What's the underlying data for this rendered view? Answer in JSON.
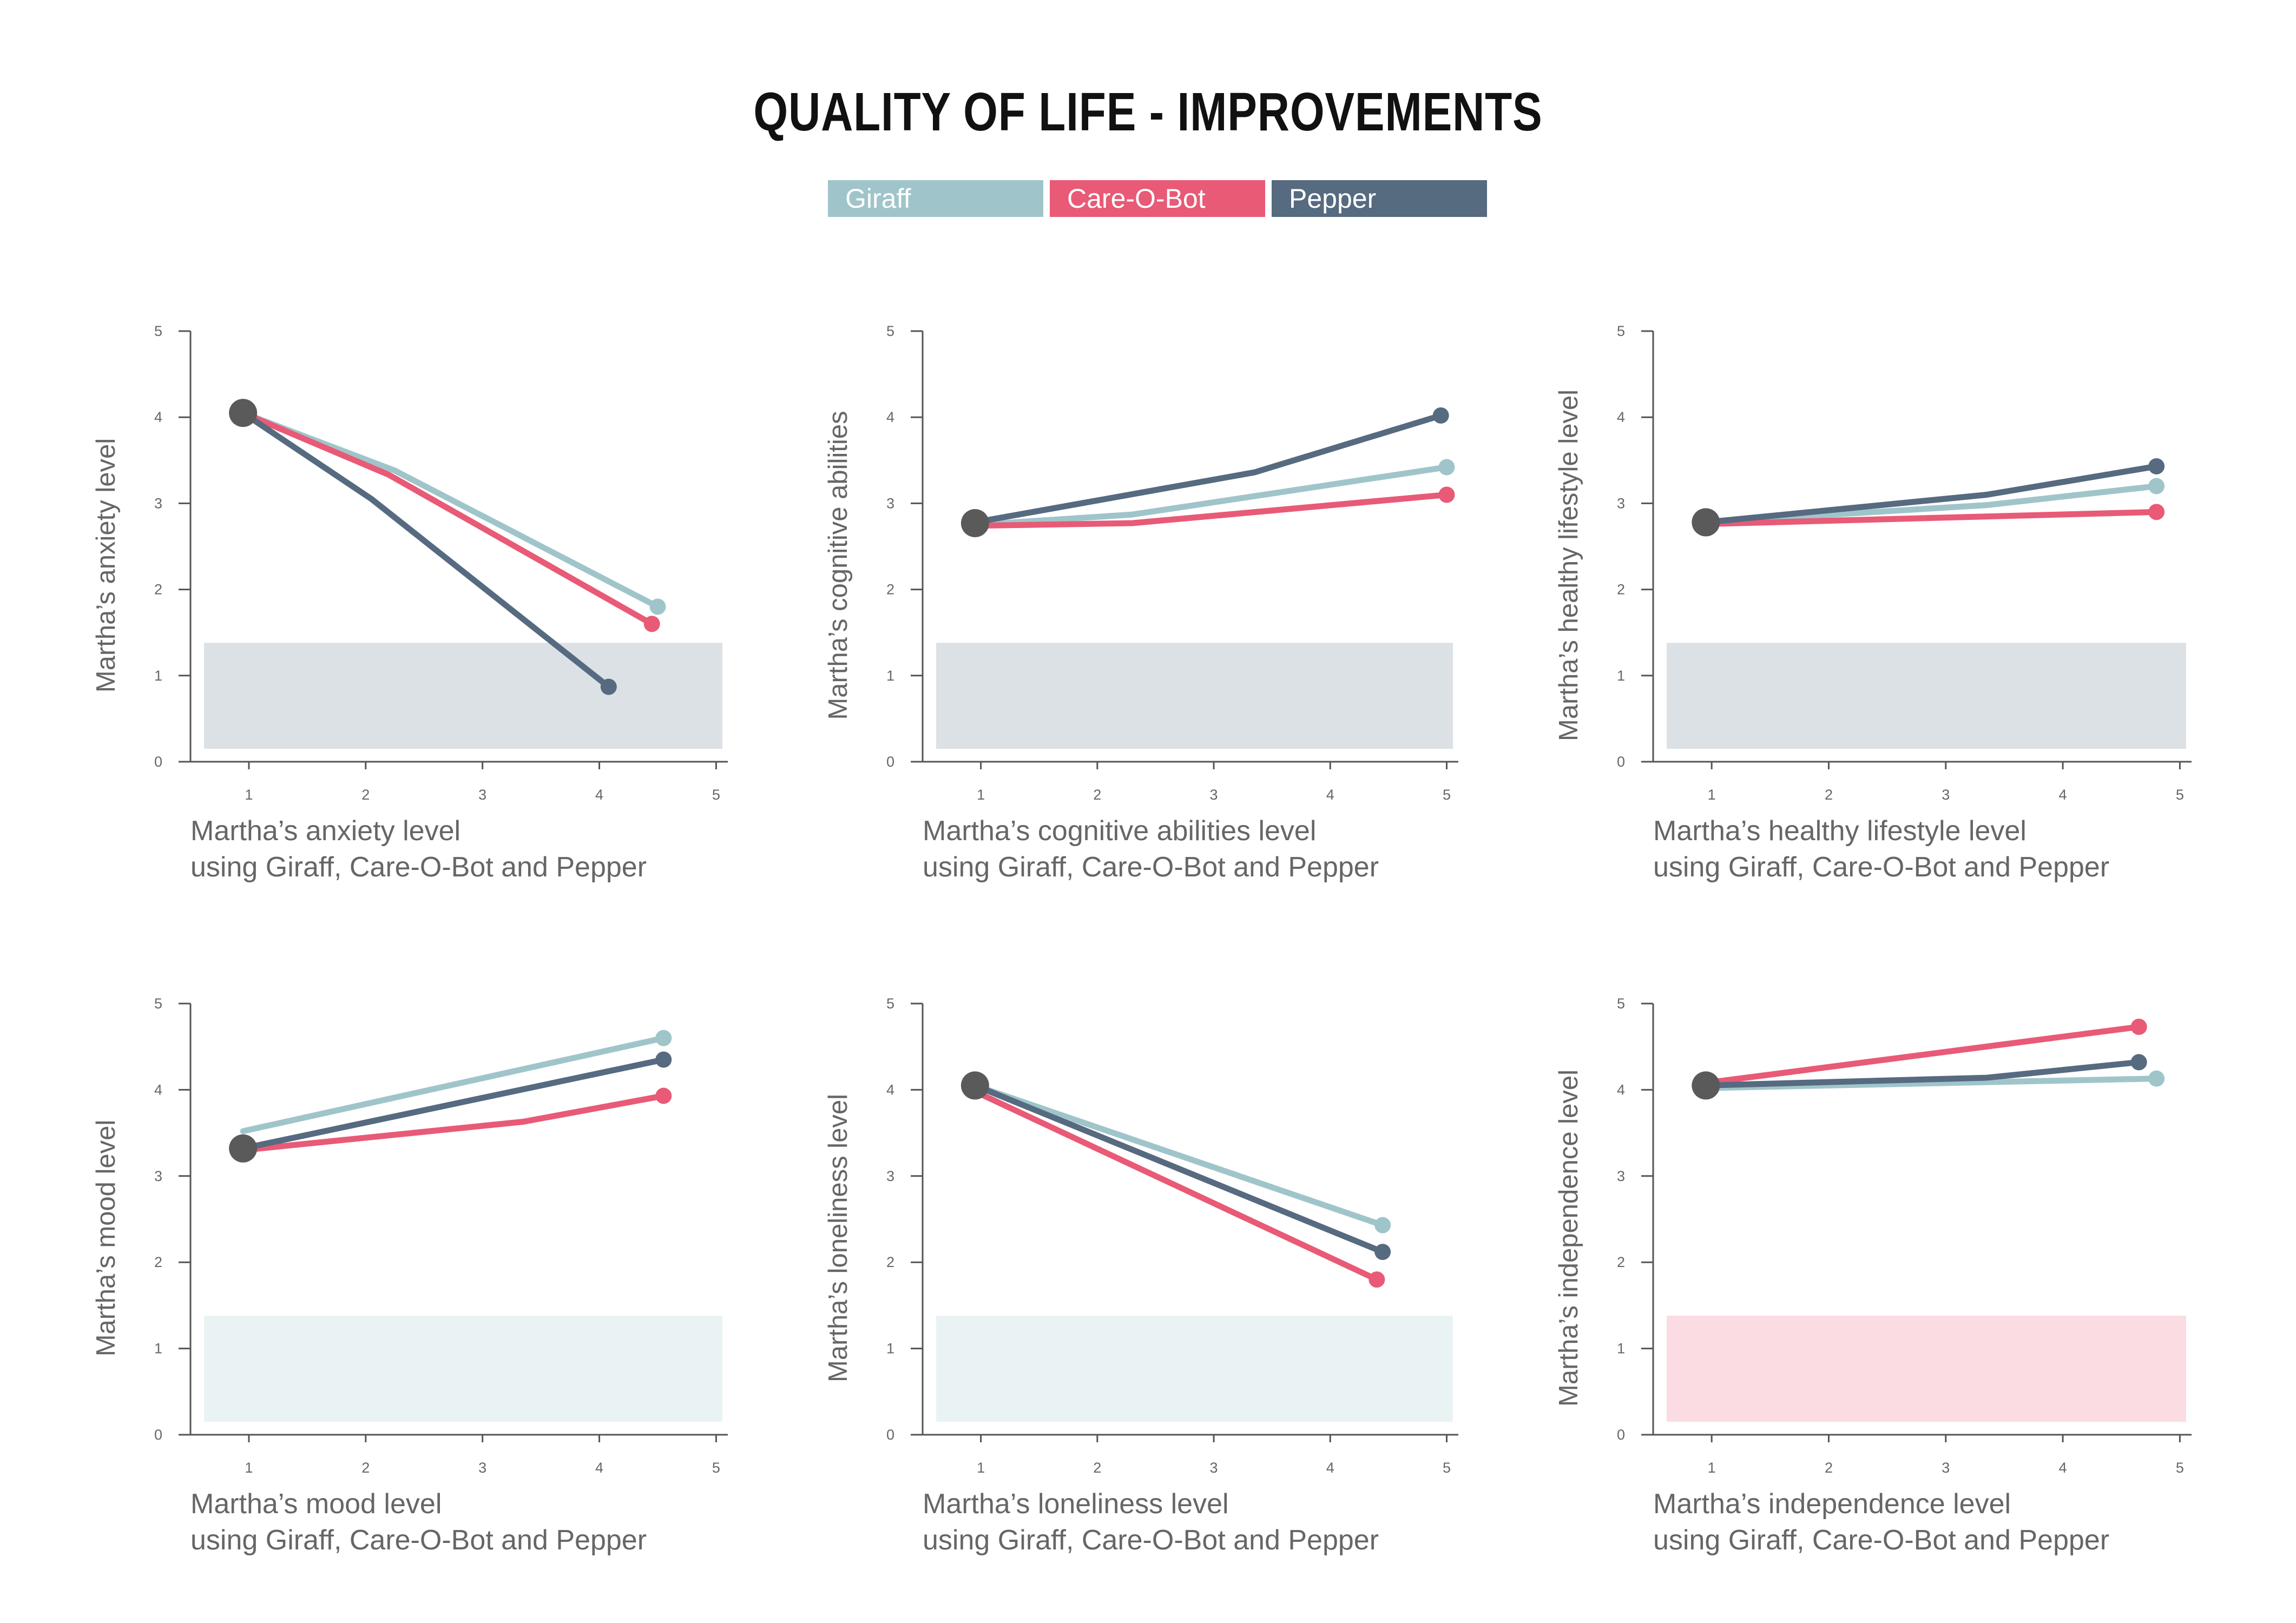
{
  "title": "QUALITY OF LIFE - IMPROVEMENTS",
  "colors": {
    "giraff": "#9fc5ca",
    "careobot": "#e85a76",
    "pepper": "#566a80",
    "start_dot": "#5a5a5a",
    "axis": "#555555",
    "text": "#666666",
    "band_gray": "#dce1e5",
    "band_teal": "#eaf3f4",
    "band_pink": "#fbdce3"
  },
  "legend": [
    {
      "label": "Giraff",
      "color": "#9fc5ca"
    },
    {
      "label": "Care-O-Bot",
      "color": "#e85a76"
    },
    {
      "label": "Pepper",
      "color": "#566a80"
    }
  ],
  "chart_data": [
    {
      "type": "line",
      "ylabel": "Martha’s anxiety level",
      "xlabel": [
        "Martha’s anxiety level",
        "using Giraff, Care-O-Bot and Pepper"
      ],
      "xticks": [
        "1",
        "2",
        "3",
        "4",
        "5"
      ],
      "yticks": [
        "0",
        "1",
        "2",
        "3",
        "4",
        "5"
      ],
      "xlim": [
        0.5,
        5.1
      ],
      "ylim": [
        0,
        5
      ],
      "band": {
        "color": "#dce1e5",
        "y_range": [
          0.15,
          1.38
        ]
      },
      "start": {
        "x": 0.95,
        "y": 4.05
      },
      "series": [
        {
          "color": "#9fc5ca",
          "x": [
            0.95,
            2.25,
            4.5
          ],
          "y": [
            4.05,
            3.38,
            1.8
          ]
        },
        {
          "color": "#e85a76",
          "x": [
            0.95,
            2.2,
            4.45
          ],
          "y": [
            4.05,
            3.33,
            1.6
          ]
        },
        {
          "color": "#566a80",
          "x": [
            0.95,
            2.05,
            4.08
          ],
          "y": [
            4.05,
            3.05,
            0.87
          ]
        }
      ]
    },
    {
      "type": "line",
      "ylabel": "Martha’s cognitive abilities",
      "xlabel": [
        "Martha’s cognitive abilities level",
        "using Giraff, Care-O-Bot and Pepper"
      ],
      "xticks": [
        "1",
        "2",
        "3",
        "4",
        "5"
      ],
      "yticks": [
        "0",
        "1",
        "2",
        "3",
        "4",
        "5"
      ],
      "xlim": [
        0.5,
        5.1
      ],
      "ylim": [
        0,
        5
      ],
      "band": {
        "color": "#dce1e5",
        "y_range": [
          0.15,
          1.38
        ]
      },
      "start": {
        "x": 0.95,
        "y": 2.77
      },
      "series": [
        {
          "color": "#9fc5ca",
          "x": [
            0.95,
            2.3,
            5.0
          ],
          "y": [
            2.75,
            2.87,
            3.42
          ]
        },
        {
          "color": "#e85a76",
          "x": [
            0.95,
            2.3,
            5.0
          ],
          "y": [
            2.74,
            2.77,
            3.1
          ]
        },
        {
          "color": "#566a80",
          "x": [
            0.95,
            3.35,
            4.95
          ],
          "y": [
            2.78,
            3.36,
            4.02
          ]
        }
      ]
    },
    {
      "type": "line",
      "ylabel": "Martha’s healthy lifestyle level",
      "xlabel": [
        "Martha’s healthy lifestyle level",
        "using Giraff, Care-O-Bot and Pepper"
      ],
      "xticks": [
        "1",
        "2",
        "3",
        "4",
        "5"
      ],
      "yticks": [
        "0",
        "1",
        "2",
        "3",
        "4",
        "5"
      ],
      "xlim": [
        0.5,
        5.1
      ],
      "ylim": [
        0,
        5
      ],
      "band": {
        "color": "#dce1e5",
        "y_range": [
          0.15,
          1.38
        ]
      },
      "start": {
        "x": 0.95,
        "y": 2.78
      },
      "series": [
        {
          "color": "#9fc5ca",
          "x": [
            0.95,
            3.35,
            4.8
          ],
          "y": [
            2.78,
            2.98,
            3.2
          ]
        },
        {
          "color": "#e85a76",
          "x": [
            0.95,
            4.8
          ],
          "y": [
            2.76,
            2.9
          ]
        },
        {
          "color": "#566a80",
          "x": [
            0.95,
            3.35,
            4.8
          ],
          "y": [
            2.78,
            3.1,
            3.43
          ]
        }
      ]
    },
    {
      "type": "line",
      "ylabel": "Martha’s mood level",
      "xlabel": [
        "Martha’s mood level",
        "using Giraff, Care-O-Bot and Pepper"
      ],
      "xticks": [
        "1",
        "2",
        "3",
        "4",
        "5"
      ],
      "yticks": [
        "0",
        "1",
        "2",
        "3",
        "4",
        "5"
      ],
      "xlim": [
        0.5,
        5.1
      ],
      "ylim": [
        0,
        5
      ],
      "band": {
        "color": "#eaf3f4",
        "y_range": [
          0.15,
          1.38
        ]
      },
      "start": {
        "x": 0.95,
        "y": 3.32
      },
      "series": [
        {
          "color": "#9fc5ca",
          "x": [
            0.95,
            4.55
          ],
          "y": [
            3.52,
            4.6
          ]
        },
        {
          "color": "#e85a76",
          "x": [
            0.95,
            3.35,
            4.55
          ],
          "y": [
            3.3,
            3.63,
            3.93
          ]
        },
        {
          "color": "#566a80",
          "x": [
            0.95,
            4.55
          ],
          "y": [
            3.32,
            4.35
          ]
        }
      ]
    },
    {
      "type": "line",
      "ylabel": "Martha’s loneliness level",
      "xlabel": [
        "Martha’s loneliness level",
        "using Giraff, Care-O-Bot and Pepper"
      ],
      "xticks": [
        "1",
        "2",
        "3",
        "4",
        "5"
      ],
      "yticks": [
        "0",
        "1",
        "2",
        "3",
        "4",
        "5"
      ],
      "xlim": [
        0.5,
        5.1
      ],
      "ylim": [
        0,
        5
      ],
      "band": {
        "color": "#eaf3f4",
        "y_range": [
          0.15,
          1.38
        ]
      },
      "start": {
        "x": 0.95,
        "y": 4.05
      },
      "series": [
        {
          "color": "#9fc5ca",
          "x": [
            0.95,
            4.45
          ],
          "y": [
            4.05,
            2.43
          ]
        },
        {
          "color": "#e85a76",
          "x": [
            0.95,
            4.4
          ],
          "y": [
            3.98,
            1.8
          ]
        },
        {
          "color": "#566a80",
          "x": [
            0.95,
            4.45
          ],
          "y": [
            4.05,
            2.12
          ]
        }
      ]
    },
    {
      "type": "line",
      "ylabel": "Martha’s independence level",
      "xlabel": [
        "Martha’s independence level",
        "using Giraff, Care-O-Bot and Pepper"
      ],
      "xticks": [
        "1",
        "2",
        "3",
        "4",
        "5"
      ],
      "yticks": [
        "0",
        "1",
        "2",
        "3",
        "4",
        "5"
      ],
      "xlim": [
        0.5,
        5.1
      ],
      "ylim": [
        0,
        5
      ],
      "band": {
        "color": "#fbdce3",
        "y_range": [
          0.15,
          1.38
        ]
      },
      "start": {
        "x": 0.95,
        "y": 4.05
      },
      "series": [
        {
          "color": "#9fc5ca",
          "x": [
            0.95,
            4.8
          ],
          "y": [
            4.02,
            4.13
          ]
        },
        {
          "color": "#e85a76",
          "x": [
            0.95,
            4.65
          ],
          "y": [
            4.08,
            4.73
          ]
        },
        {
          "color": "#566a80",
          "x": [
            0.95,
            3.35,
            4.65
          ],
          "y": [
            4.05,
            4.14,
            4.32
          ]
        }
      ]
    }
  ]
}
